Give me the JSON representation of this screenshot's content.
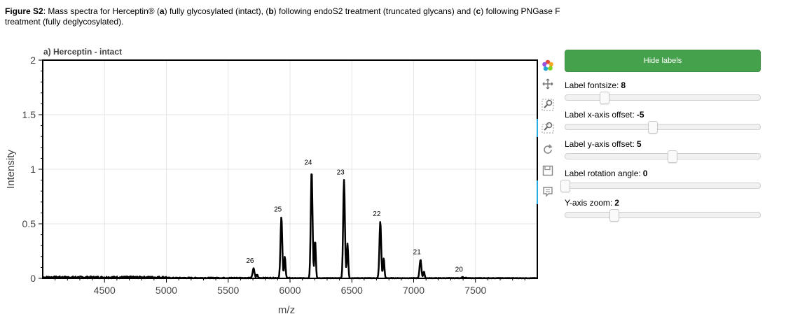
{
  "caption": {
    "fig": "Figure S2",
    "text_a": ": Mass spectra for Herceptin® (",
    "a": "a",
    "text_b": ") fully glycosylated (intact), (",
    "b": "b",
    "text_c": ") following endoS2 treatment (truncated glycans) and (",
    "c": "c",
    "text_d": ") following PNGase F treatment (fully deglycosylated)."
  },
  "chart_data": {
    "type": "line",
    "title": "a) Herceptin - intact",
    "xlabel": "m/z",
    "ylabel": "Intensity",
    "xlim": [
      4000,
      8000
    ],
    "ylim": [
      0,
      2
    ],
    "xticks": [
      "4500",
      "5000",
      "5500",
      "6000",
      "6500",
      "7000",
      "7500"
    ],
    "xtick_values": [
      4500,
      5000,
      5500,
      6000,
      6500,
      7000,
      7500
    ],
    "yticks": [
      "0",
      "0.5",
      "1",
      "1.5",
      "2"
    ],
    "ytick_values": [
      0,
      0.5,
      1,
      1.5,
      2
    ],
    "grid": true,
    "peaks": [
      {
        "label": "26",
        "x": 5705,
        "y": 0.09
      },
      {
        "label": "25",
        "x": 5930,
        "y": 0.56
      },
      {
        "label": "24",
        "x": 6175,
        "y": 0.99
      },
      {
        "label": "23",
        "x": 6437,
        "y": 0.9
      },
      {
        "label": "22",
        "x": 6730,
        "y": 0.52
      },
      {
        "label": "21",
        "x": 7055,
        "y": 0.17
      },
      {
        "label": "20",
        "x": 7395,
        "y": 0.01
      }
    ]
  },
  "toolbar": {
    "logo": "bokeh-logo-icon",
    "tools": [
      "pan-icon",
      "box-zoom-icon",
      "wheel-zoom-icon",
      "reset-icon",
      "save-icon",
      "hover-icon"
    ]
  },
  "widgets": {
    "button_label": "Hide labels",
    "button_color": "#46a14c",
    "sliders": [
      {
        "title": "Label fontsize:",
        "value": "8",
        "position": 0.2
      },
      {
        "title": "Label x-axis offset:",
        "value": "-5",
        "position": 0.45
      },
      {
        "title": "Label y-axis offset:",
        "value": "5",
        "position": 0.55
      },
      {
        "title": "Label rotation angle:",
        "value": "0",
        "position": 0.0
      },
      {
        "title": "Y-axis zoom:",
        "value": "2",
        "position": 0.25
      }
    ]
  }
}
